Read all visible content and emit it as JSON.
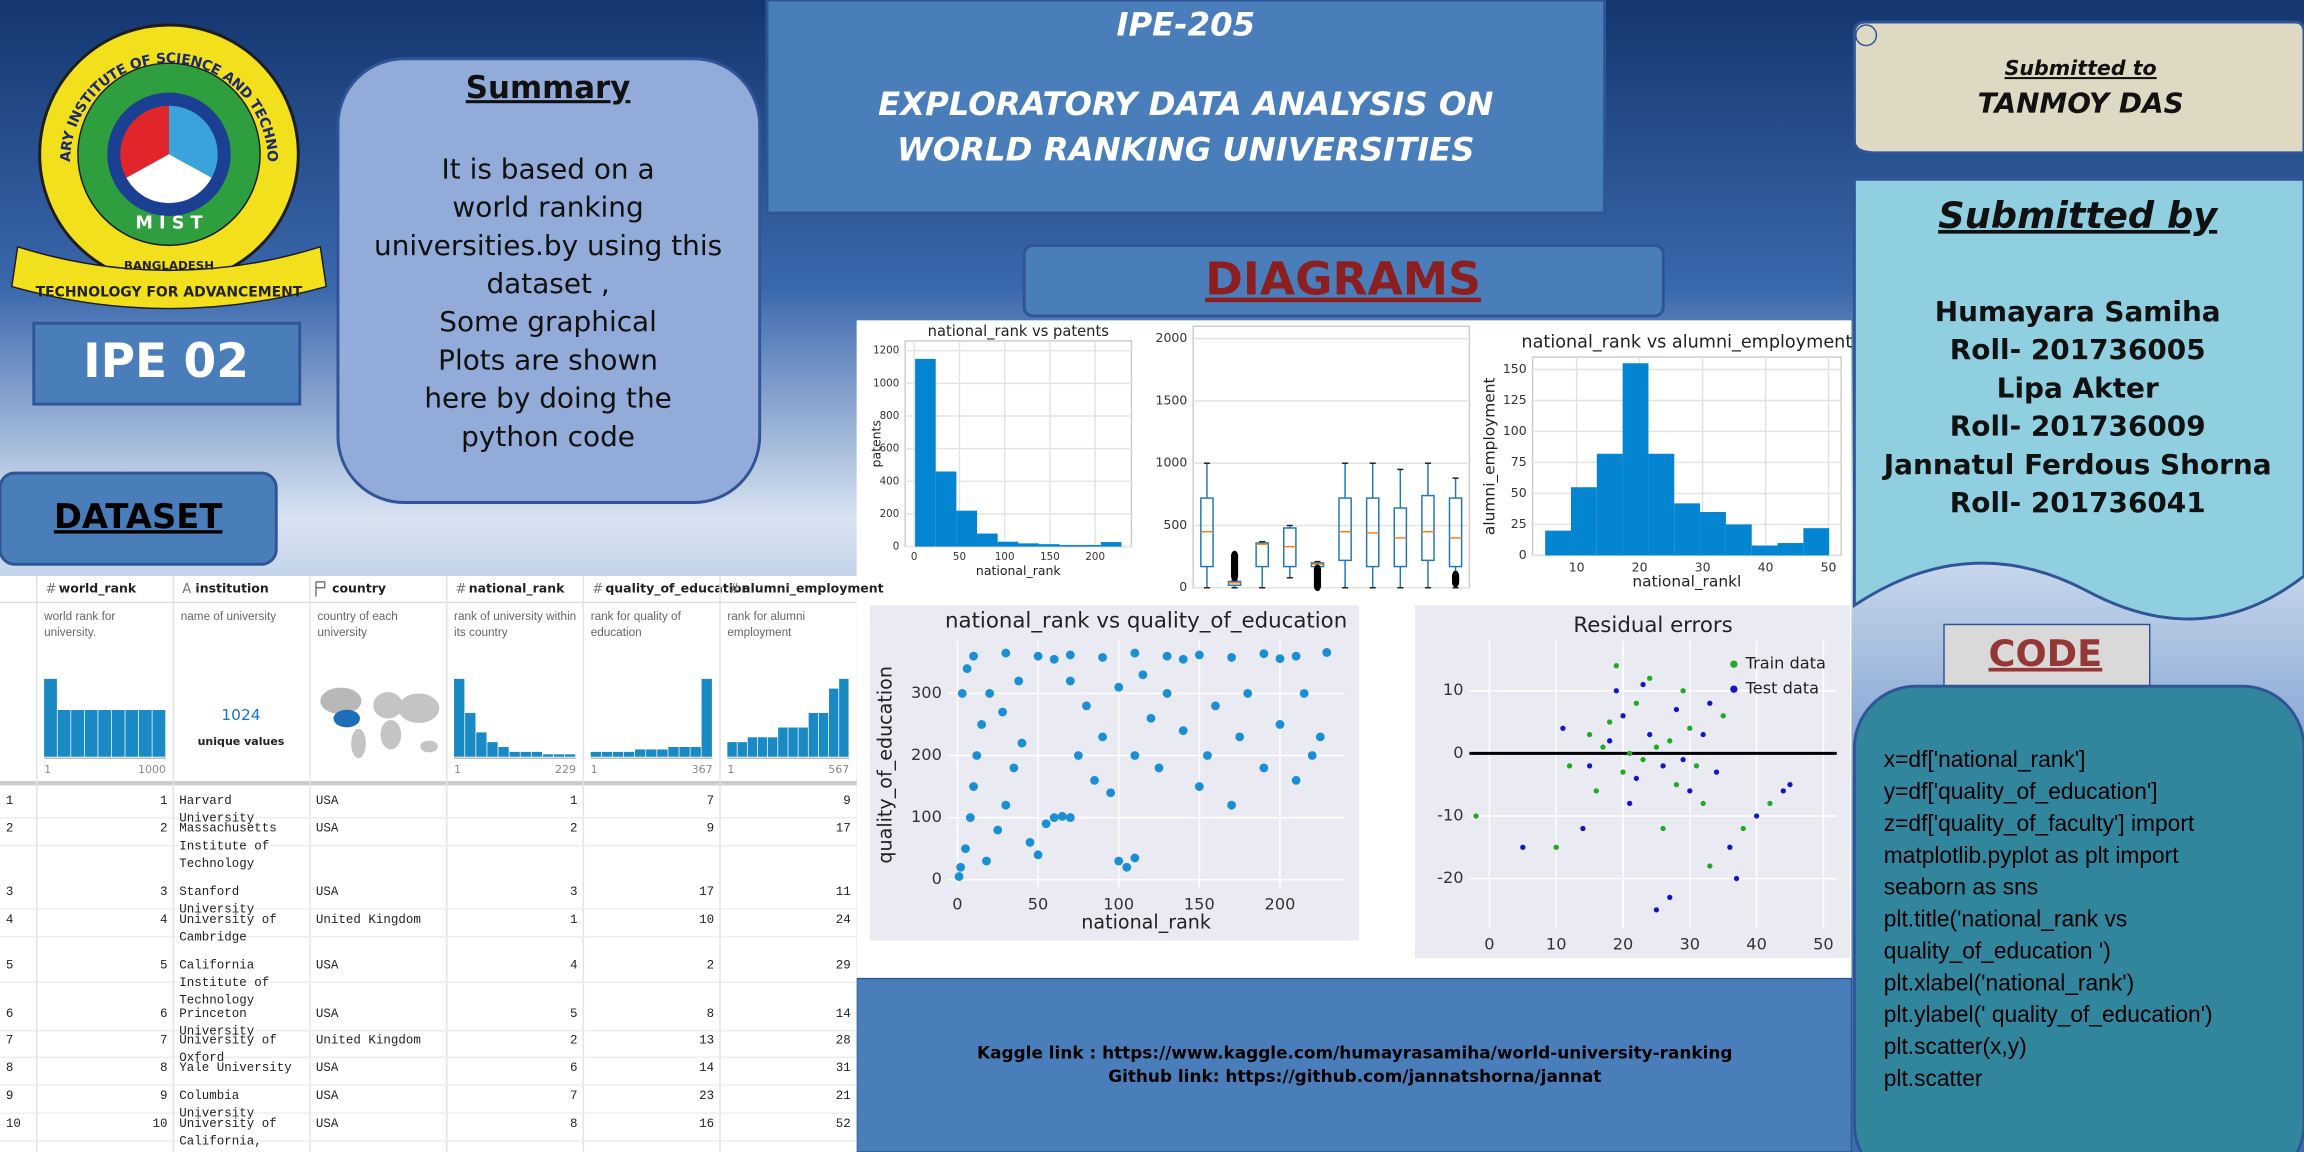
{
  "logo": {
    "top_text": "MILITARY INSTITUTE OF SCIENCE AND TECHNOLOGY",
    "letters": "M I S T",
    "country": "BANGLADESH",
    "motto": "TECHNOLOGY FOR ADVANCEMENT"
  },
  "badge": "IPE 02",
  "summary": {
    "title": "Summary",
    "lines": [
      "It is based on a",
      "world ranking",
      "universities.by using this",
      "dataset ,",
      "Some graphical",
      "Plots are shown",
      "here by doing the",
      "python code"
    ]
  },
  "header": {
    "course": "IPE-205",
    "title_lines": [
      "EXPLORATORY DATA ANALYSIS ON",
      "WORLD  RANKING UNIVERSITIES"
    ]
  },
  "dataset_title": "DATASET",
  "diagrams_title": "DIAGRAMS",
  "submitted_to": {
    "label": "Submitted to",
    "name": "TANMOY DAS"
  },
  "submitted_by": {
    "title": "Submitted by",
    "lines": [
      "Humayara Samiha",
      "Roll- 201736005",
      "Lipa Akter",
      "Roll- 201736009",
      "Jannatul Ferdous Shorna",
      "Roll- 201736041"
    ]
  },
  "code": {
    "title": "CODE",
    "lines": [
      "x=df['national_rank']",
      "y=df['quality_of_education']",
      "z=df['quality_of_faculty'] import",
      "matplotlib.pyplot as plt import",
      "seaborn as sns",
      "plt.title('national_rank vs",
      "quality_of_education ')",
      "plt.xlabel('national_rank')",
      "plt.ylabel(' quality_of_education')",
      "plt.scatter(x,y)",
      "plt.scatter"
    ]
  },
  "links": [
    "Kaggle link : https://www.kaggle.com/humayrasamiha/world-university-ranking",
    "Github link: https://github.com/jannatshorna/jannat"
  ],
  "table": {
    "columns": [
      {
        "icon": "#",
        "name": "world_rank",
        "description": "world rank for university.",
        "spark": [
          10,
          6,
          6,
          6,
          6,
          6,
          6,
          6,
          6
        ],
        "min": 1,
        "max": 1000
      },
      {
        "icon": "A",
        "name": "institution",
        "description": "name of university",
        "unique": 1024,
        "unique_label": "unique values"
      },
      {
        "name": "country",
        "description": "country of each university"
      },
      {
        "icon": "#",
        "name": "national_rank",
        "description": "rank of university within its country",
        "spark": [
          16,
          9,
          5,
          3,
          2,
          1,
          1,
          1,
          0.5,
          0.5,
          0.5
        ],
        "min": 1,
        "max": 229
      },
      {
        "icon": "#",
        "name": "quality_of_education",
        "description": "rank for quality of education",
        "spark": [
          1,
          1,
          1,
          1,
          1.5,
          1.5,
          1.5,
          2,
          2,
          2,
          16
        ],
        "min": 1,
        "max": 367
      },
      {
        "icon": "#",
        "name": "alumni_employment",
        "description": "rank for alumni employment",
        "spark": [
          3,
          3,
          4,
          4,
          4,
          6,
          6,
          6,
          9,
          9,
          14,
          16
        ],
        "min": 1,
        "max": 567
      }
    ],
    "rows": [
      [
        1,
        1,
        "Harvard University",
        "USA",
        1,
        7,
        9
      ],
      [
        2,
        2,
        "Massachusetts Institute of Technology",
        "USA",
        2,
        9,
        17
      ],
      [
        3,
        3,
        "Stanford University",
        "USA",
        3,
        17,
        11
      ],
      [
        4,
        4,
        "University of Cambridge",
        "United Kingdom",
        1,
        10,
        24
      ],
      [
        5,
        5,
        "California Institute of Technology",
        "USA",
        4,
        2,
        29
      ],
      [
        6,
        6,
        "Princeton University",
        "USA",
        5,
        8,
        14
      ],
      [
        7,
        7,
        "University of Oxford",
        "United Kingdom",
        2,
        13,
        28
      ],
      [
        8,
        8,
        "Yale University",
        "USA",
        6,
        14,
        31
      ],
      [
        9,
        9,
        "Columbia University",
        "USA",
        7,
        23,
        21
      ],
      [
        10,
        10,
        "University of California, Berkeley",
        "USA",
        8,
        16,
        52
      ]
    ]
  },
  "chart_data": [
    {
      "type": "histogram",
      "title": "national_rank vs patents",
      "x_label": "national_rank",
      "y_label": "patents",
      "bins": [
        1,
        23.8,
        46.6,
        69.4,
        92.2,
        115,
        137.8,
        160.6,
        183.4,
        206.2,
        229
      ],
      "counts": [
        1150,
        460,
        220,
        80,
        30,
        20,
        15,
        10,
        10,
        28
      ],
      "color": "#0485d1",
      "xlim": [
        -10,
        240
      ],
      "ylim": [
        0,
        1260
      ],
      "xticks": [
        0,
        50,
        100,
        150,
        200
      ],
      "yticks": [
        0,
        200,
        400,
        600,
        800,
        1000,
        1200
      ],
      "grid": true
    },
    {
      "type": "box",
      "boxes": [
        {
          "min": 0,
          "q1": 170,
          "median": 450,
          "q3": 720,
          "max": 1000
        },
        {
          "min": 0,
          "q1": 20,
          "median": 40,
          "q3": 50,
          "max": 60,
          "outliers": [
            100,
            130,
            160,
            190,
            220,
            250
          ]
        },
        {
          "min": 0,
          "q1": 170,
          "median": 350,
          "q3": 360,
          "max": 370
        },
        {
          "min": 80,
          "q1": 170,
          "median": 330,
          "q3": 480,
          "max": 500
        },
        {
          "min": 0,
          "q1": 170,
          "median": 190,
          "q3": 200,
          "max": 210,
          "outliers": [
            20,
            50,
            80,
            110,
            140
          ]
        },
        {
          "min": 0,
          "q1": 220,
          "median": 450,
          "q3": 720,
          "max": 1000
        },
        {
          "min": 0,
          "q1": 170,
          "median": 440,
          "q3": 720,
          "max": 1000
        },
        {
          "min": 0,
          "q1": 170,
          "median": 400,
          "q3": 640,
          "max": 950
        },
        {
          "min": 0,
          "q1": 220,
          "median": 450,
          "q3": 740,
          "max": 1000
        },
        {
          "min": 0,
          "q1": 170,
          "median": 400,
          "q3": 720,
          "max": 880,
          "outliers": [
            50,
            70,
            90
          ]
        }
      ],
      "color": "#1f77b4",
      "median_color": "#ff7f0e",
      "ylim": [
        0,
        2100
      ],
      "yticks": [
        0,
        500,
        1000,
        1500,
        2000
      ],
      "grid": true
    },
    {
      "type": "histogram",
      "title": "national_rank vs alumni_employment",
      "x_label": "national_rankl",
      "y_label": "alumni_employment",
      "bins": [
        5,
        9.1,
        13.2,
        17.3,
        21.4,
        25.5,
        29.6,
        33.7,
        37.8,
        41.9,
        46,
        50.1
      ],
      "counts": [
        20,
        55,
        82,
        155,
        82,
        42,
        35,
        25,
        8,
        10,
        22
      ],
      "color": "#0485d1",
      "xlim": [
        3,
        52
      ],
      "ylim": [
        0,
        160
      ],
      "xticks": [
        10,
        20,
        30,
        40,
        50
      ],
      "yticks": [
        0,
        25,
        50,
        75,
        100,
        125,
        150
      ],
      "grid": true
    },
    {
      "type": "scatter",
      "title": "national_rank vs quality_of_education",
      "x_label": "national_rank",
      "y_label": "quality_of_education",
      "color": "#1a8fd6",
      "x": [
        10,
        30,
        50,
        70,
        90,
        110,
        130,
        150,
        170,
        190,
        210,
        229,
        60,
        140,
        200,
        2,
        5,
        8,
        10,
        12,
        15,
        20,
        25,
        30,
        35,
        40,
        45,
        50,
        55,
        3,
        6,
        1,
        18,
        28,
        38,
        60,
        65,
        70,
        80,
        90,
        100,
        110,
        120,
        125,
        130,
        140,
        150,
        155,
        160,
        170,
        175,
        180,
        190,
        200,
        210,
        215,
        220,
        225,
        100,
        105,
        110,
        85,
        95,
        75,
        70,
        115
      ],
      "y": [
        360,
        365,
        360,
        362,
        358,
        365,
        360,
        362,
        358,
        364,
        360,
        366,
        355,
        355,
        356,
        20,
        50,
        100,
        150,
        200,
        250,
        300,
        80,
        120,
        180,
        220,
        60,
        40,
        90,
        300,
        340,
        5,
        30,
        270,
        320,
        100,
        102,
        100,
        280,
        230,
        310,
        200,
        260,
        180,
        300,
        240,
        150,
        200,
        280,
        120,
        230,
        300,
        180,
        250,
        160,
        300,
        200,
        230,
        30,
        20,
        35,
        160,
        140,
        200,
        320,
        330
      ],
      "xlim": [
        -6,
        240
      ],
      "ylim": [
        -15,
        385
      ],
      "xticks": [
        0,
        50,
        100,
        150,
        200
      ],
      "yticks": [
        0,
        100,
        200,
        300
      ],
      "grid": true
    },
    {
      "type": "scatter",
      "title": "Residual errors",
      "hline": 0,
      "hline_color": "#000000",
      "legend": "upper right",
      "series": [
        {
          "name": "Train data",
          "color": "#22a822",
          "x": [
            -2,
            12,
            15,
            18,
            20,
            22,
            25,
            28,
            30,
            32,
            35,
            16,
            24,
            26,
            33,
            38,
            42,
            10,
            19,
            29,
            21,
            27,
            23,
            31,
            17
          ],
          "y": [
            -10,
            -2,
            3,
            5,
            -3,
            8,
            1,
            -5,
            4,
            -8,
            6,
            -6,
            12,
            -12,
            -18,
            -12,
            -8,
            -15,
            14,
            10,
            0,
            2,
            -1,
            -2,
            1
          ]
        },
        {
          "name": "Test data",
          "color": "#1515c8",
          "x": [
            5,
            14,
            18,
            20,
            22,
            24,
            26,
            28,
            30,
            32,
            34,
            36,
            40,
            44,
            25,
            27,
            19,
            23,
            21,
            29,
            33,
            11,
            37,
            45,
            15
          ],
          "y": [
            -15,
            -12,
            2,
            6,
            -4,
            3,
            -2,
            7,
            -6,
            3,
            -3,
            -15,
            -10,
            -6,
            -25,
            -23,
            10,
            11,
            -8,
            -1,
            8,
            4,
            -20,
            -5,
            -2
          ]
        }
      ],
      "xlim": [
        -3,
        52
      ],
      "ylim": [
        -28,
        18
      ],
      "xticks": [
        0,
        10,
        20,
        30,
        40,
        50
      ],
      "yticks": [
        -20,
        -10,
        0,
        10
      ],
      "grid": true
    }
  ]
}
